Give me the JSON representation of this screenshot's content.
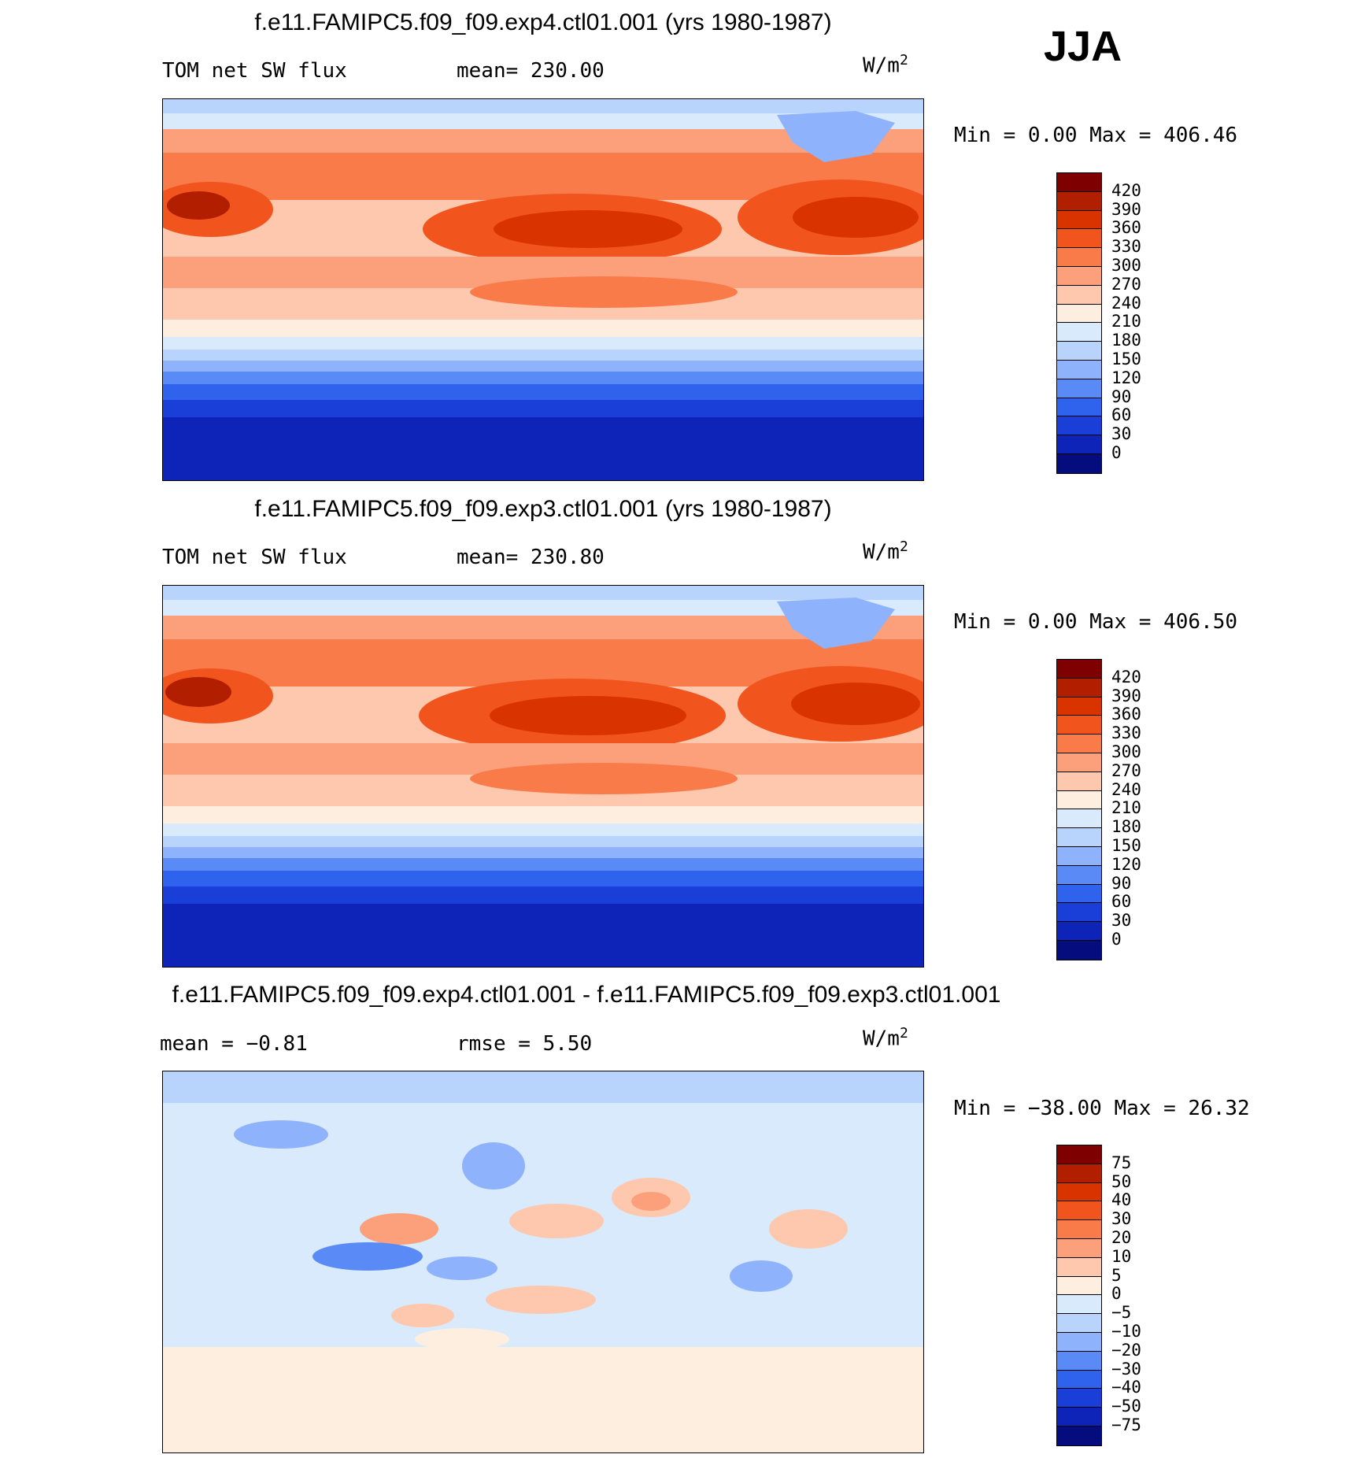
{
  "season": "JJA",
  "units": "W/m",
  "units_exp": "2",
  "panels": [
    {
      "title": "f.e11.FAMIPC5.f09_f09.exp4.ctl01.001 (yrs 1980-1987)",
      "left_label": "TOM net SW flux",
      "mid_label": "mean= 230.00",
      "min_max": "Min =    0.00 Max = 406.46",
      "levels": [
        "420",
        "390",
        "360",
        "330",
        "300",
        "270",
        "240",
        "210",
        "180",
        "150",
        "120",
        "90",
        "60",
        "30",
        "0"
      ],
      "colors": [
        "#7f0000",
        "#b21e00",
        "#d93400",
        "#f2541e",
        "#fa7b4a",
        "#fca07b",
        "#fdc8ae",
        "#feeee0",
        "#d9eafc",
        "#b8d3fc",
        "#8fb2fc",
        "#5a8af6",
        "#2f63ee",
        "#1a3fd8",
        "#0e23b8",
        "#050d7e"
      ]
    },
    {
      "title": "f.e11.FAMIPC5.f09_f09.exp3.ctl01.001 (yrs 1980-1987)",
      "left_label": "TOM net SW flux",
      "mid_label": "mean= 230.80",
      "min_max": "Min =    0.00 Max = 406.50",
      "levels": [
        "420",
        "390",
        "360",
        "330",
        "300",
        "270",
        "240",
        "210",
        "180",
        "150",
        "120",
        "90",
        "60",
        "30",
        "0"
      ],
      "colors": [
        "#7f0000",
        "#b21e00",
        "#d93400",
        "#f2541e",
        "#fa7b4a",
        "#fca07b",
        "#fdc8ae",
        "#feeee0",
        "#d9eafc",
        "#b8d3fc",
        "#8fb2fc",
        "#5a8af6",
        "#2f63ee",
        "#1a3fd8",
        "#0e23b8",
        "#050d7e"
      ]
    },
    {
      "title": "f.e11.FAMIPC5.f09_f09.exp4.ctl01.001 - f.e11.FAMIPC5.f09_f09.exp3.ctl01.001",
      "left_label": "mean =   −0.81",
      "mid_label": "rmse =    5.50",
      "min_max": "Min = −38.00 Max =  26.32",
      "levels": [
        "75",
        "50",
        "40",
        "30",
        "20",
        "10",
        "5",
        "0",
        "−5",
        "−10",
        "−20",
        "−30",
        "−40",
        "−50",
        "−75"
      ],
      "colors": [
        "#7f0000",
        "#b21e00",
        "#d93400",
        "#f2541e",
        "#fa7b4a",
        "#fca07b",
        "#fdc8ae",
        "#feeee0",
        "#d9eafc",
        "#b8d3fc",
        "#8fb2fc",
        "#5a8af6",
        "#2f63ee",
        "#1a3fd8",
        "#0e23b8",
        "#050d7e"
      ]
    }
  ]
}
